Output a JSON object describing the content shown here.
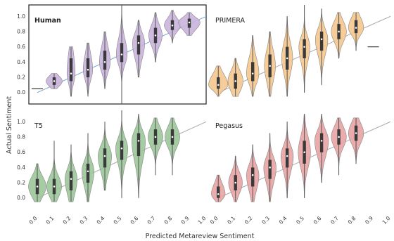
{
  "chart_data": {
    "type": "violin",
    "xlabel": "Predicted Metareview Sentiment",
    "ylabel": "Actual Sentiment",
    "x_ticks": [
      "0.0",
      "0.1",
      "0.2",
      "0.3",
      "0.4",
      "0.5",
      "0.6",
      "0.7",
      "0.8",
      "0.9",
      "1.0"
    ],
    "y_ticks": [
      "0.0",
      "0.2",
      "0.4",
      "0.6",
      "0.8",
      "1.0"
    ],
    "xlim": [
      -0.05,
      1.0
    ],
    "ylim": [
      -0.15,
      1.15
    ],
    "diagonal": "y = x",
    "panels": [
      {
        "title": "Human",
        "bold": true,
        "color": "#c9b4dc",
        "line_color": "#7ba7d1",
        "framed": true,
        "violins": [
          {
            "x": 0.0,
            "median": 0.05,
            "q1": 0.05,
            "q3": 0.05,
            "min": 0.05,
            "max": 0.05,
            "width": 0.01
          },
          {
            "x": 0.1,
            "median": 0.15,
            "q1": 0.1,
            "q3": 0.2,
            "min": 0.05,
            "max": 0.25,
            "width": 0.6
          },
          {
            "x": 0.2,
            "median": 0.25,
            "q1": 0.15,
            "q3": 0.45,
            "min": -0.05,
            "max": 0.6,
            "width": 0.3
          },
          {
            "x": 0.3,
            "median": 0.3,
            "q1": 0.2,
            "q3": 0.45,
            "min": -0.05,
            "max": 0.65,
            "width": 0.35
          },
          {
            "x": 0.4,
            "median": 0.4,
            "q1": 0.3,
            "q3": 0.55,
            "min": 0.05,
            "max": 0.8,
            "width": 0.4
          },
          {
            "x": 0.5,
            "median": 0.5,
            "q1": 0.4,
            "q3": 0.65,
            "min": -0.15,
            "max": 1.15,
            "width": 0.4
          },
          {
            "x": 0.6,
            "median": 0.65,
            "q1": 0.5,
            "q3": 0.75,
            "min": 0.2,
            "max": 0.95,
            "width": 0.45
          },
          {
            "x": 0.7,
            "median": 0.75,
            "q1": 0.65,
            "q3": 0.85,
            "min": 0.4,
            "max": 1.05,
            "width": 0.5
          },
          {
            "x": 0.8,
            "median": 0.88,
            "q1": 0.82,
            "q3": 0.95,
            "min": 0.65,
            "max": 1.08,
            "width": 0.6
          },
          {
            "x": 0.9,
            "median": 0.92,
            "q1": 0.85,
            "q3": 0.97,
            "min": 0.75,
            "max": 1.05,
            "width": 0.8
          }
        ]
      },
      {
        "title": "PRIMERA",
        "bold": false,
        "color": "#f5c78e",
        "line_color": "#aaaaaa",
        "framed": false,
        "violins": [
          {
            "x": 0.0,
            "median": 0.1,
            "q1": 0.05,
            "q3": 0.2,
            "min": -0.05,
            "max": 0.35,
            "width": 0.7
          },
          {
            "x": 0.1,
            "median": 0.15,
            "q1": 0.05,
            "q3": 0.25,
            "min": -0.05,
            "max": 0.45,
            "width": 0.55
          },
          {
            "x": 0.2,
            "median": 0.25,
            "q1": 0.15,
            "q3": 0.4,
            "min": -0.05,
            "max": 0.75,
            "width": 0.45
          },
          {
            "x": 0.3,
            "median": 0.35,
            "q1": 0.2,
            "q3": 0.5,
            "min": -0.05,
            "max": 0.8,
            "width": 0.4
          },
          {
            "x": 0.4,
            "median": 0.45,
            "q1": 0.3,
            "q3": 0.6,
            "min": -0.05,
            "max": 1.0,
            "width": 0.4
          },
          {
            "x": 0.5,
            "median": 0.6,
            "q1": 0.45,
            "q3": 0.7,
            "min": 0.0,
            "max": 1.15,
            "width": 0.4
          },
          {
            "x": 0.6,
            "median": 0.7,
            "q1": 0.55,
            "q3": 0.8,
            "min": 0.1,
            "max": 1.1,
            "width": 0.45
          },
          {
            "x": 0.7,
            "median": 0.8,
            "q1": 0.7,
            "q3": 0.9,
            "min": 0.45,
            "max": 1.05,
            "width": 0.55
          },
          {
            "x": 0.8,
            "median": 0.85,
            "q1": 0.78,
            "q3": 0.95,
            "min": 0.55,
            "max": 1.05,
            "width": 0.55
          },
          {
            "x": 0.9,
            "median": 0.6,
            "q1": 0.6,
            "q3": 0.6,
            "min": 0.6,
            "max": 0.6,
            "width": 0.01
          }
        ]
      },
      {
        "title": "T5",
        "bold": false,
        "color": "#9cc79a",
        "line_color": "#aaaaaa",
        "framed": false,
        "violins": [
          {
            "x": 0.0,
            "median": 0.15,
            "q1": 0.05,
            "q3": 0.25,
            "min": -0.05,
            "max": 0.45,
            "width": 0.65
          },
          {
            "x": 0.1,
            "median": 0.15,
            "q1": 0.05,
            "q3": 0.25,
            "min": -0.05,
            "max": 0.75,
            "width": 0.55
          },
          {
            "x": 0.2,
            "median": 0.25,
            "q1": 0.1,
            "q3": 0.35,
            "min": -0.05,
            "max": 0.7,
            "width": 0.45
          },
          {
            "x": 0.3,
            "median": 0.35,
            "q1": 0.2,
            "q3": 0.45,
            "min": -0.05,
            "max": 0.85,
            "width": 0.45
          },
          {
            "x": 0.4,
            "median": 0.55,
            "q1": 0.4,
            "q3": 0.65,
            "min": 0.1,
            "max": 1.0,
            "width": 0.5
          },
          {
            "x": 0.5,
            "median": 0.65,
            "q1": 0.5,
            "q3": 0.75,
            "min": 0.0,
            "max": 1.15,
            "width": 0.45
          },
          {
            "x": 0.6,
            "median": 0.75,
            "q1": 0.55,
            "q3": 0.85,
            "min": 0.0,
            "max": 1.1,
            "width": 0.5
          },
          {
            "x": 0.7,
            "median": 0.8,
            "q1": 0.7,
            "q3": 0.9,
            "min": 0.3,
            "max": 1.05,
            "width": 0.55
          },
          {
            "x": 0.8,
            "median": 0.8,
            "q1": 0.7,
            "q3": 0.9,
            "min": 0.3,
            "max": 1.05,
            "width": 0.55
          }
        ]
      },
      {
        "title": "Pegasus",
        "bold": false,
        "color": "#e8a3a3",
        "line_color": "#aaaaaa",
        "framed": false,
        "violins": [
          {
            "x": 0.0,
            "median": 0.05,
            "q1": 0.0,
            "q3": 0.15,
            "min": -0.05,
            "max": 0.3,
            "width": 0.5
          },
          {
            "x": 0.1,
            "median": 0.2,
            "q1": 0.1,
            "q3": 0.3,
            "min": -0.05,
            "max": 0.55,
            "width": 0.5
          },
          {
            "x": 0.2,
            "median": 0.3,
            "q1": 0.15,
            "q3": 0.4,
            "min": -0.05,
            "max": 0.7,
            "width": 0.45
          },
          {
            "x": 0.3,
            "median": 0.4,
            "q1": 0.25,
            "q3": 0.5,
            "min": -0.05,
            "max": 0.85,
            "width": 0.45
          },
          {
            "x": 0.4,
            "median": 0.55,
            "q1": 0.4,
            "q3": 0.65,
            "min": 0.0,
            "max": 1.0,
            "width": 0.45
          },
          {
            "x": 0.5,
            "median": 0.6,
            "q1": 0.45,
            "q3": 0.75,
            "min": 0.0,
            "max": 1.1,
            "width": 0.45
          },
          {
            "x": 0.6,
            "median": 0.75,
            "q1": 0.6,
            "q3": 0.85,
            "min": 0.2,
            "max": 1.1,
            "width": 0.5
          },
          {
            "x": 0.7,
            "median": 0.8,
            "q1": 0.7,
            "q3": 0.9,
            "min": 0.3,
            "max": 1.05,
            "width": 0.55
          },
          {
            "x": 0.8,
            "median": 0.85,
            "q1": 0.75,
            "q3": 0.95,
            "min": 0.45,
            "max": 1.05,
            "width": 0.55
          }
        ]
      }
    ]
  }
}
